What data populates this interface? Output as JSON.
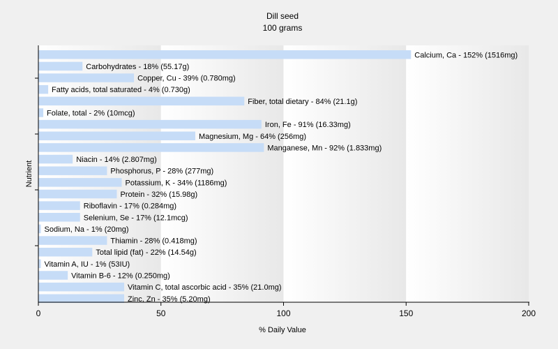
{
  "chart_data": {
    "type": "bar",
    "orientation": "horizontal",
    "title": "Dill seed",
    "subtitle": "100 grams",
    "xlabel": "% Daily Value",
    "ylabel": "Nutrient",
    "xlim": [
      0,
      200
    ],
    "x_ticks": [
      "0",
      "50",
      "100",
      "150",
      "200"
    ],
    "grid": "vertical gradient bands",
    "bar_color": "#c6dcf7",
    "categories": [
      "Calcium, Ca",
      "Carbohydrates",
      "Copper, Cu",
      "Fatty acids, total saturated",
      "Fiber, total dietary",
      "Folate, total",
      "Iron, Fe",
      "Magnesium, Mg",
      "Manganese, Mn",
      "Niacin",
      "Phosphorus, P",
      "Potassium, K",
      "Protein",
      "Riboflavin",
      "Selenium, Se",
      "Sodium, Na",
      "Thiamin",
      "Total lipid (fat)",
      "Vitamin A, IU",
      "Vitamin B-6",
      "Vitamin C, total ascorbic acid",
      "Zinc, Zn"
    ],
    "values": [
      152,
      18,
      39,
      4,
      84,
      2,
      91,
      64,
      92,
      14,
      28,
      34,
      32,
      17,
      17,
      1,
      28,
      22,
      1,
      12,
      35,
      35
    ],
    "labels": [
      "Calcium, Ca - 152% (1516mg)",
      "Carbohydrates - 18% (55.17g)",
      "Copper, Cu - 39% (0.780mg)",
      "Fatty acids, total saturated - 4% (0.730g)",
      "Fiber, total dietary - 84% (21.1g)",
      "Folate, total - 2% (10mcg)",
      "Iron, Fe - 91% (16.33mg)",
      "Magnesium, Mg - 64% (256mg)",
      "Manganese, Mn - 92% (1.833mg)",
      "Niacin - 14% (2.807mg)",
      "Phosphorus, P - 28% (277mg)",
      "Potassium, K - 34% (1186mg)",
      "Protein - 32% (15.98g)",
      "Riboflavin - 17% (0.284mg)",
      "Selenium, Se - 17% (12.1mcg)",
      "Sodium, Na - 1% (20mg)",
      "Thiamin - 28% (0.418mg)",
      "Total lipid (fat) - 22% (14.54g)",
      "Vitamin A, IU - 1% (53IU)",
      "Vitamin B-6 - 12% (0.250mg)",
      "Vitamin C, total ascorbic acid - 35% (21.0mg)",
      "Zinc, Zn - 35% (5.20mg)"
    ]
  }
}
